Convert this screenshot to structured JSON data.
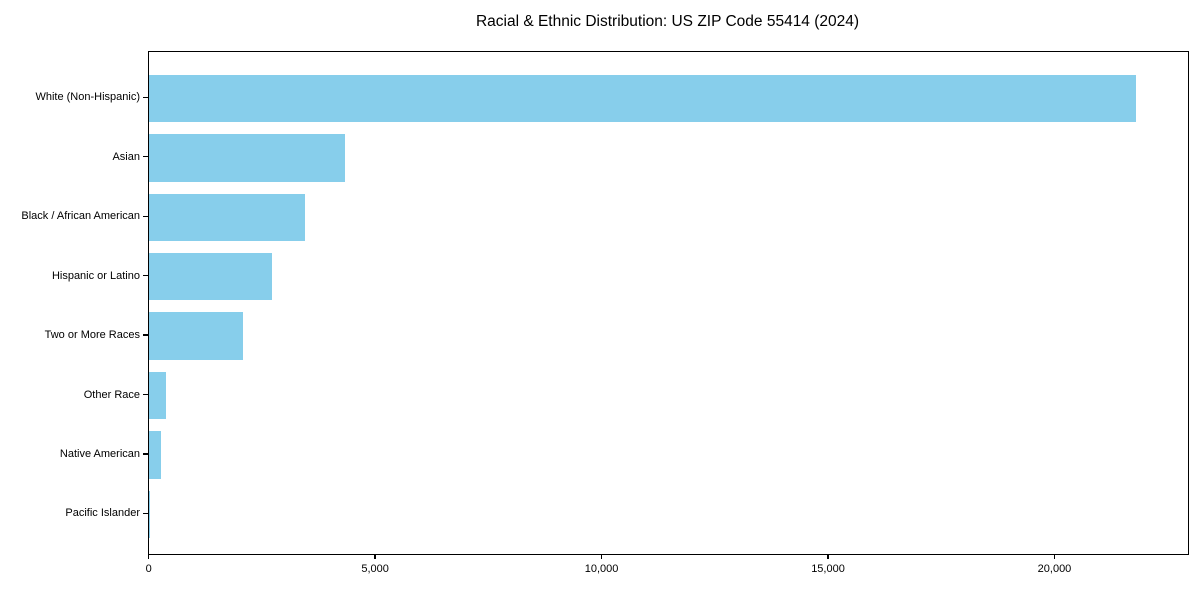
{
  "chart_data": {
    "type": "bar",
    "orientation": "horizontal",
    "title": "Racial & Ethnic Distribution: US ZIP Code 55414 (2024)",
    "categories": [
      "White (Non-Hispanic)",
      "Asian",
      "Black / African American",
      "Hispanic or Latino",
      "Two or More Races",
      "Other Race",
      "Native American",
      "Pacific Islander"
    ],
    "values": [
      21800,
      4330,
      3450,
      2710,
      2080,
      370,
      270,
      20
    ],
    "xlabel": "",
    "ylabel": "",
    "xlim": [
      0,
      22940
    ],
    "xticks": {
      "values": [
        0,
        5000,
        10000,
        15000,
        20000
      ],
      "labels": [
        "0",
        "5,000",
        "10,000",
        "15,000",
        "20,000"
      ]
    },
    "bar_color": "#87ceeb",
    "grid": false,
    "legend": "none",
    "frame": "full-box"
  }
}
